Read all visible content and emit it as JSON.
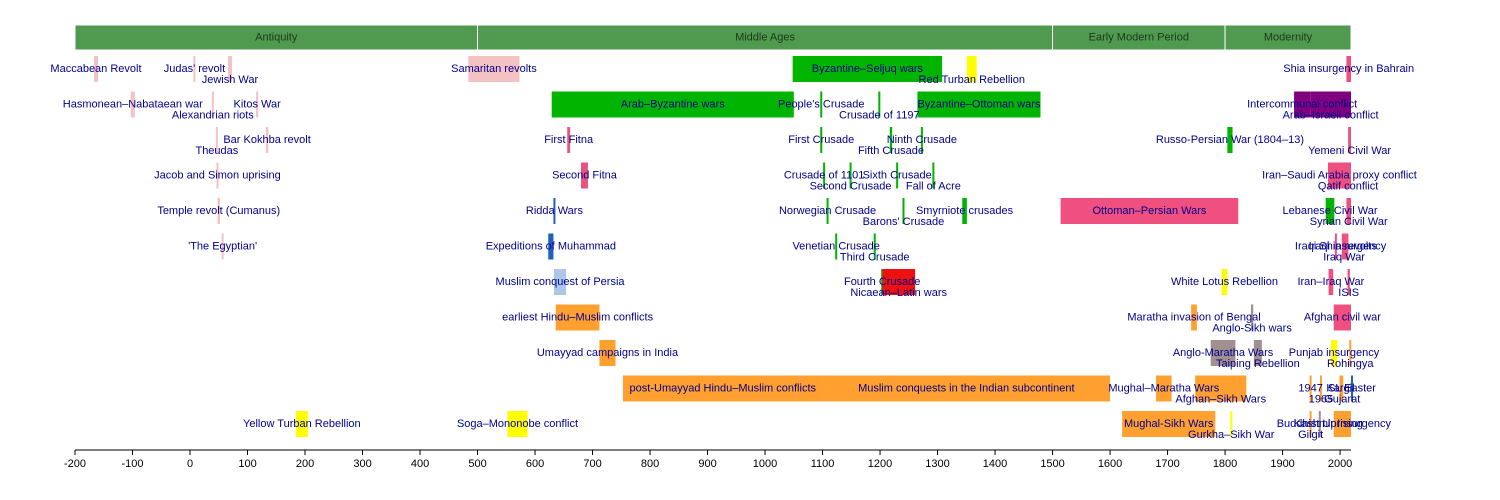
{
  "chart_data": {
    "type": "timeline",
    "xlim": [
      -200,
      2019
    ],
    "xticks": [
      -200,
      -100,
      0,
      100,
      200,
      300,
      400,
      500,
      600,
      700,
      800,
      900,
      1000,
      1100,
      1200,
      1300,
      1400,
      1500,
      1600,
      1700,
      1800,
      1900,
      2000
    ],
    "era_color": "#4f9a4f",
    "label_color": "#00008b",
    "eras": [
      {
        "name": "Antiquity",
        "start": -200,
        "end": 500
      },
      {
        "name": "Middle Ages",
        "start": 500,
        "end": 1500
      },
      {
        "name": "Early Modern Period",
        "start": 1500,
        "end": 1800
      },
      {
        "name": "Modernity",
        "start": 1800,
        "end": 2019
      }
    ],
    "lanes": [
      [
        {
          "name": "Maccabean Revolt",
          "start": -167,
          "end": -160,
          "color": "#f4c2c2"
        },
        {
          "name": "Judas' revolt",
          "start": 6,
          "end": 7,
          "color": "#f4c2c2"
        },
        {
          "name": "Jewish War",
          "start": 66,
          "end": 73,
          "color": "#f4c2c2"
        },
        {
          "name": "Samaritan revolts",
          "start": 484,
          "end": 573,
          "color": "#f4c2c2"
        },
        {
          "name": "Byzantine–Seljuq wars",
          "start": 1048,
          "end": 1308,
          "color": "#00b400"
        },
        {
          "name": "Red Turban Rebellion",
          "start": 1351,
          "end": 1368,
          "color": "#ffff00"
        },
        {
          "name": "Shia insurgency in Bahrain",
          "start": 2011,
          "end": 2019,
          "color": "#f0507f"
        }
      ],
      [
        {
          "name": "Hasmonean–Nabataean war",
          "start": -103,
          "end": -96,
          "color": "#f4c2c2"
        },
        {
          "name": "Alexandrian riots",
          "start": 38,
          "end": 41,
          "color": "#f4c2c2"
        },
        {
          "name": "Kitos War",
          "start": 115,
          "end": 117,
          "color": "#f4c2c2"
        },
        {
          "name": "Arab–Byzantine wars",
          "start": 629,
          "end": 1050,
          "color": "#00b400"
        },
        {
          "name": "People's Crusade",
          "start": 1096,
          "end": 1097,
          "color": "#00b400"
        },
        {
          "name": "Crusade of 1197",
          "start": 1197,
          "end": 1198,
          "color": "#00b400"
        },
        {
          "name": "Byzantine–Ottoman wars",
          "start": 1265,
          "end": 1479,
          "color": "#00b400"
        },
        {
          "name": "Intercommunal conflict",
          "start": 1920,
          "end": 1948,
          "color": "#800080"
        },
        {
          "name": "Arab–Israeli conflict",
          "start": 1948,
          "end": 2019,
          "color": "#800080"
        }
      ],
      [
        {
          "name": "Bar Kokhba revolt",
          "start": 132,
          "end": 136,
          "color": "#f4c2c2"
        },
        {
          "name": "Theudas",
          "start": 45,
          "end": 46,
          "color": "#f4c2c2"
        },
        {
          "name": "First Fitna",
          "start": 656,
          "end": 661,
          "color": "#e75480"
        },
        {
          "name": "First Crusade",
          "start": 1096,
          "end": 1099,
          "color": "#00b400"
        },
        {
          "name": "Fifth Crusade",
          "start": 1217,
          "end": 1221,
          "color": "#00b400"
        },
        {
          "name": "Ninth Crusade",
          "start": 1271,
          "end": 1272,
          "color": "#00b400"
        },
        {
          "name": "Russo-Persian War (1804–13)",
          "start": 1804,
          "end": 1813,
          "color": "#00b400"
        },
        {
          "name": "Yemeni Civil War",
          "start": 2014,
          "end": 2019,
          "color": "#e75480"
        }
      ],
      [
        {
          "name": "Jacob and Simon uprising",
          "start": 46,
          "end": 48,
          "color": "#f4c2c2"
        },
        {
          "name": "Second Fitna",
          "start": 680,
          "end": 692,
          "color": "#e75480"
        },
        {
          "name": "Crusade of 1101",
          "start": 1101,
          "end": 1102,
          "color": "#00b400"
        },
        {
          "name": "Second Crusade",
          "start": 1147,
          "end": 1149,
          "color": "#00b400"
        },
        {
          "name": "Sixth Crusade",
          "start": 1228,
          "end": 1229,
          "color": "#00b400"
        },
        {
          "name": "Fall of Acre",
          "start": 1291,
          "end": 1292,
          "color": "#00b400"
        },
        {
          "name": "Iran–Saudi Arabia proxy conflict",
          "start": 1979,
          "end": 2019,
          "color": "#f0507f"
        },
        {
          "name": "Qatif conflict",
          "start": 2011,
          "end": 2017,
          "color": "#e75480"
        }
      ],
      [
        {
          "name": "Temple revolt (Cumanus)",
          "start": 48,
          "end": 52,
          "color": "#f4c2c2"
        },
        {
          "name": "Ridda Wars",
          "start": 632,
          "end": 633,
          "color": "#1e60c0"
        },
        {
          "name": "Norwegian Crusade",
          "start": 1107,
          "end": 1110,
          "color": "#00b400"
        },
        {
          "name": "Barons' Crusade",
          "start": 1239,
          "end": 1241,
          "color": "#00b400"
        },
        {
          "name": "Smyrniote crusades",
          "start": 1343,
          "end": 1351,
          "color": "#00b400"
        },
        {
          "name": "Ottoman–Persian Wars",
          "start": 1514,
          "end": 1823,
          "color": "#f0507f"
        },
        {
          "name": "Lebanese Civil War",
          "start": 1975,
          "end": 1990,
          "color": "#00b400"
        },
        {
          "name": "Syrian Civil War",
          "start": 2011,
          "end": 2019,
          "color": "#f0507f"
        }
      ],
      [
        {
          "name": "'The Egyptian'",
          "start": 55,
          "end": 58,
          "color": "#f4c2c2"
        },
        {
          "name": "Expeditions of Muhammad",
          "start": 623,
          "end": 632,
          "color": "#1e60c0"
        },
        {
          "name": "Venetian Crusade",
          "start": 1122,
          "end": 1124,
          "color": "#00b400"
        },
        {
          "name": "Third Crusade",
          "start": 1189,
          "end": 1192,
          "color": "#00b400"
        },
        {
          "name": "Iraqi Shia revolts",
          "start": 1991,
          "end": 1992,
          "color": "#f0507f"
        },
        {
          "name": "Iraq War",
          "start": 2003,
          "end": 2011,
          "color": "#f0507f"
        },
        {
          "name": "Iraqi insurgency",
          "start": 2011,
          "end": 2013,
          "color": "#f0507f"
        }
      ],
      [
        {
          "name": "Muslim conquest of Persia",
          "start": 633,
          "end": 654,
          "color": "#aec7e8"
        },
        {
          "name": "Fourth Crusade",
          "start": 1202,
          "end": 1204,
          "color": "#00b400"
        },
        {
          "name": "Nicaean–Latin wars",
          "start": 1204,
          "end": 1261,
          "color": "#ee1111"
        },
        {
          "name": "White Lotus Rebellion",
          "start": 1794,
          "end": 1804,
          "color": "#ffff00"
        },
        {
          "name": "Iran–Iraq War",
          "start": 1980,
          "end": 1988,
          "color": "#f0507f"
        },
        {
          "name": "ISIS",
          "start": 2013,
          "end": 2017,
          "color": "#f0507f"
        }
      ],
      [
        {
          "name": "earliest Hindu–Muslim conflicts",
          "start": 636,
          "end": 712,
          "color": "#ffa030"
        },
        {
          "name": "Maratha invasion of Bengal",
          "start": 1741,
          "end": 1751,
          "color": "#ffa030"
        },
        {
          "name": "Anglo-Sikh wars",
          "start": 1845,
          "end": 1849,
          "color": "#a09090"
        },
        {
          "name": "Afghan civil war",
          "start": 1989,
          "end": 2019,
          "color": "#f0507f"
        }
      ],
      [
        {
          "name": "Umayyad campaigns in India",
          "start": 712,
          "end": 740,
          "color": "#ffa030"
        },
        {
          "name": "Anglo-Maratha Wars",
          "start": 1775,
          "end": 1818,
          "color": "#a09090"
        },
        {
          "name": "Taiping Rebellion",
          "start": 1850,
          "end": 1864,
          "color": "#a09090"
        },
        {
          "name": "Punjab insurgency",
          "start": 1984,
          "end": 1995,
          "color": "#ffff00"
        },
        {
          "name": "Rohingya",
          "start": 2016,
          "end": 2019,
          "color": "#ffa030"
        }
      ],
      [
        {
          "name": "post-Umayyad Hindu–Muslim conflicts",
          "start": 753,
          "end": 1100,
          "color": "#ffa030"
        },
        {
          "name": "Muslim conquests in the Indian subcontinent",
          "start": 1100,
          "end": 1600,
          "color": "#ffa030"
        },
        {
          "name": "Mughal–Maratha Wars",
          "start": 1680,
          "end": 1707,
          "color": "#ffa030"
        },
        {
          "name": "Afghan–Sikh Wars",
          "start": 1748,
          "end": 1837,
          "color": "#ffa030"
        },
        {
          "name": "1947",
          "start": 1947,
          "end": 1948,
          "color": "#ffa030"
        },
        {
          "name": "1965",
          "start": 1965,
          "end": 1966,
          "color": "#ffa030"
        },
        {
          "name": "Kargil",
          "start": 1999,
          "end": 2000,
          "color": "#ffa030"
        },
        {
          "name": "Gujarat",
          "start": 2002,
          "end": 2003,
          "color": "#ffa030"
        },
        {
          "name": "SL Easter",
          "start": 2019,
          "end": 2019,
          "color": "#1e60c0"
        }
      ],
      [
        {
          "name": "Yellow Turban Rebellion",
          "start": 184,
          "end": 205,
          "color": "#ffff00"
        },
        {
          "name": "Soga–Mononobe conflict",
          "start": 552,
          "end": 587,
          "color": "#ffff00"
        },
        {
          "name": "Mughal-Sikh Wars",
          "start": 1621,
          "end": 1783,
          "color": "#ffa030"
        },
        {
          "name": "Gurkha–Sikh War",
          "start": 1809,
          "end": 1809,
          "color": "#ffff00"
        },
        {
          "name": "Buddhist Uprising",
          "start": 1963,
          "end": 1966,
          "color": "#a09090"
        },
        {
          "name": "Gilgit",
          "start": 1947,
          "end": 1948,
          "color": "#ffa030"
        },
        {
          "name": "Kashmir Insurgency",
          "start": 1989,
          "end": 2019,
          "color": "#ffa030"
        }
      ]
    ]
  }
}
